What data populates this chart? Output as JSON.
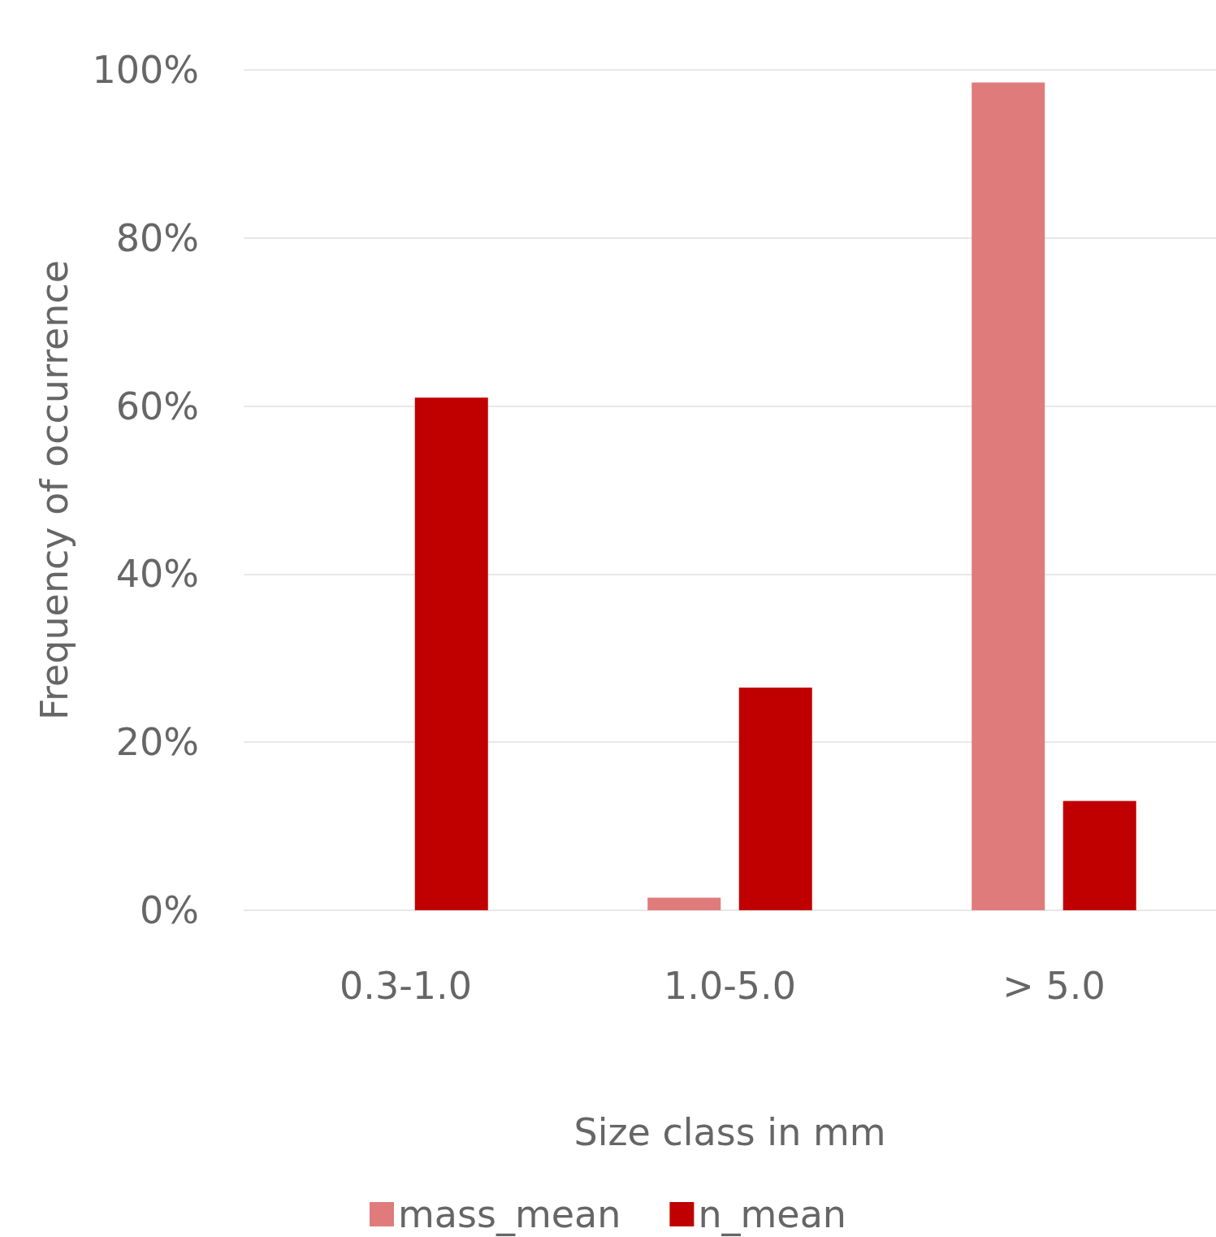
{
  "chart_data": {
    "type": "bar",
    "xlabel": "Size class in mm",
    "ylabel": "Frequency of occurrence",
    "categories": [
      "0.3-1.0",
      "1.0-5.0",
      "> 5.0"
    ],
    "series": [
      {
        "name": "mass_mean",
        "color": "#e07b7b",
        "values": [
          0,
          1.5,
          98.5
        ]
      },
      {
        "name": "n_mean",
        "color": "#c00000",
        "values": [
          61,
          26.5,
          13
        ]
      }
    ],
    "ylim": [
      0,
      100
    ],
    "yticks": [
      {
        "value": 0,
        "label": "0%"
      },
      {
        "value": 20,
        "label": "20%"
      },
      {
        "value": 40,
        "label": "40%"
      },
      {
        "value": 60,
        "label": "60%"
      },
      {
        "value": 80,
        "label": "80%"
      },
      {
        "value": 100,
        "label": "100%"
      }
    ],
    "grid": "y",
    "legend": "bottom"
  }
}
